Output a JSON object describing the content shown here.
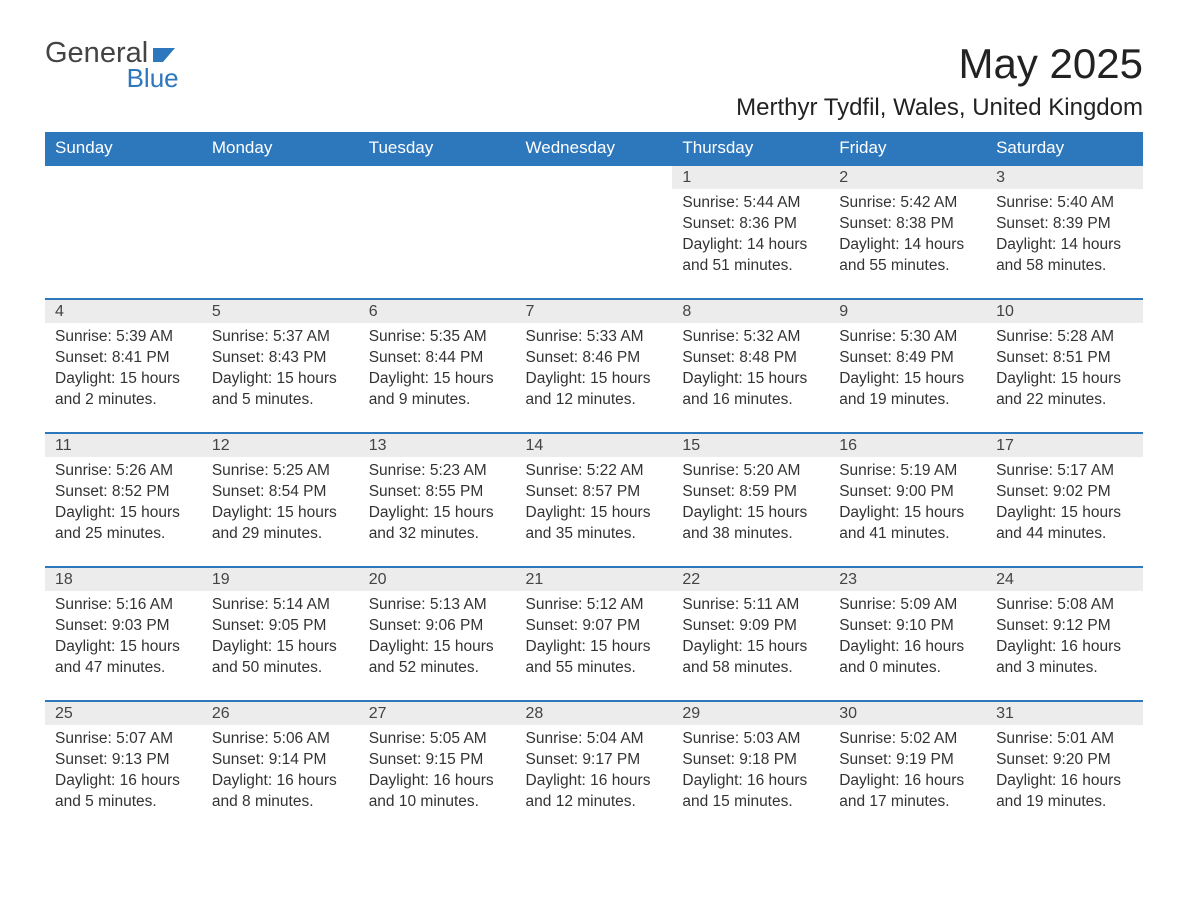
{
  "logo": {
    "line1": "General",
    "line2": "Blue",
    "text_color": "#444444",
    "blue_color": "#2d77bd"
  },
  "title": "May 2025",
  "location": "Merthyr Tydfil, Wales, United Kingdom",
  "colors": {
    "header_bg": "#2d77bd",
    "header_text": "#ffffff",
    "daynum_bg": "#ececec",
    "row_border": "#2d77bd",
    "body_text": "#333333",
    "page_bg": "#ffffff"
  },
  "fonts": {
    "title_size": 42,
    "location_size": 24,
    "header_size": 17,
    "cell_size": 15.5
  },
  "day_headers": [
    "Sunday",
    "Monday",
    "Tuesday",
    "Wednesday",
    "Thursday",
    "Friday",
    "Saturday"
  ],
  "weeks": [
    [
      null,
      null,
      null,
      null,
      {
        "n": "1",
        "sunrise": "5:44 AM",
        "sunset": "8:36 PM",
        "dl": "14 hours and 51 minutes."
      },
      {
        "n": "2",
        "sunrise": "5:42 AM",
        "sunset": "8:38 PM",
        "dl": "14 hours and 55 minutes."
      },
      {
        "n": "3",
        "sunrise": "5:40 AM",
        "sunset": "8:39 PM",
        "dl": "14 hours and 58 minutes."
      }
    ],
    [
      {
        "n": "4",
        "sunrise": "5:39 AM",
        "sunset": "8:41 PM",
        "dl": "15 hours and 2 minutes."
      },
      {
        "n": "5",
        "sunrise": "5:37 AM",
        "sunset": "8:43 PM",
        "dl": "15 hours and 5 minutes."
      },
      {
        "n": "6",
        "sunrise": "5:35 AM",
        "sunset": "8:44 PM",
        "dl": "15 hours and 9 minutes."
      },
      {
        "n": "7",
        "sunrise": "5:33 AM",
        "sunset": "8:46 PM",
        "dl": "15 hours and 12 minutes."
      },
      {
        "n": "8",
        "sunrise": "5:32 AM",
        "sunset": "8:48 PM",
        "dl": "15 hours and 16 minutes."
      },
      {
        "n": "9",
        "sunrise": "5:30 AM",
        "sunset": "8:49 PM",
        "dl": "15 hours and 19 minutes."
      },
      {
        "n": "10",
        "sunrise": "5:28 AM",
        "sunset": "8:51 PM",
        "dl": "15 hours and 22 minutes."
      }
    ],
    [
      {
        "n": "11",
        "sunrise": "5:26 AM",
        "sunset": "8:52 PM",
        "dl": "15 hours and 25 minutes."
      },
      {
        "n": "12",
        "sunrise": "5:25 AM",
        "sunset": "8:54 PM",
        "dl": "15 hours and 29 minutes."
      },
      {
        "n": "13",
        "sunrise": "5:23 AM",
        "sunset": "8:55 PM",
        "dl": "15 hours and 32 minutes."
      },
      {
        "n": "14",
        "sunrise": "5:22 AM",
        "sunset": "8:57 PM",
        "dl": "15 hours and 35 minutes."
      },
      {
        "n": "15",
        "sunrise": "5:20 AM",
        "sunset": "8:59 PM",
        "dl": "15 hours and 38 minutes."
      },
      {
        "n": "16",
        "sunrise": "5:19 AM",
        "sunset": "9:00 PM",
        "dl": "15 hours and 41 minutes."
      },
      {
        "n": "17",
        "sunrise": "5:17 AM",
        "sunset": "9:02 PM",
        "dl": "15 hours and 44 minutes."
      }
    ],
    [
      {
        "n": "18",
        "sunrise": "5:16 AM",
        "sunset": "9:03 PM",
        "dl": "15 hours and 47 minutes."
      },
      {
        "n": "19",
        "sunrise": "5:14 AM",
        "sunset": "9:05 PM",
        "dl": "15 hours and 50 minutes."
      },
      {
        "n": "20",
        "sunrise": "5:13 AM",
        "sunset": "9:06 PM",
        "dl": "15 hours and 52 minutes."
      },
      {
        "n": "21",
        "sunrise": "5:12 AM",
        "sunset": "9:07 PM",
        "dl": "15 hours and 55 minutes."
      },
      {
        "n": "22",
        "sunrise": "5:11 AM",
        "sunset": "9:09 PM",
        "dl": "15 hours and 58 minutes."
      },
      {
        "n": "23",
        "sunrise": "5:09 AM",
        "sunset": "9:10 PM",
        "dl": "16 hours and 0 minutes."
      },
      {
        "n": "24",
        "sunrise": "5:08 AM",
        "sunset": "9:12 PM",
        "dl": "16 hours and 3 minutes."
      }
    ],
    [
      {
        "n": "25",
        "sunrise": "5:07 AM",
        "sunset": "9:13 PM",
        "dl": "16 hours and 5 minutes."
      },
      {
        "n": "26",
        "sunrise": "5:06 AM",
        "sunset": "9:14 PM",
        "dl": "16 hours and 8 minutes."
      },
      {
        "n": "27",
        "sunrise": "5:05 AM",
        "sunset": "9:15 PM",
        "dl": "16 hours and 10 minutes."
      },
      {
        "n": "28",
        "sunrise": "5:04 AM",
        "sunset": "9:17 PM",
        "dl": "16 hours and 12 minutes."
      },
      {
        "n": "29",
        "sunrise": "5:03 AM",
        "sunset": "9:18 PM",
        "dl": "16 hours and 15 minutes."
      },
      {
        "n": "30",
        "sunrise": "5:02 AM",
        "sunset": "9:19 PM",
        "dl": "16 hours and 17 minutes."
      },
      {
        "n": "31",
        "sunrise": "5:01 AM",
        "sunset": "9:20 PM",
        "dl": "16 hours and 19 minutes."
      }
    ]
  ],
  "labels": {
    "sunrise": "Sunrise:",
    "sunset": "Sunset:",
    "daylight": "Daylight:"
  }
}
